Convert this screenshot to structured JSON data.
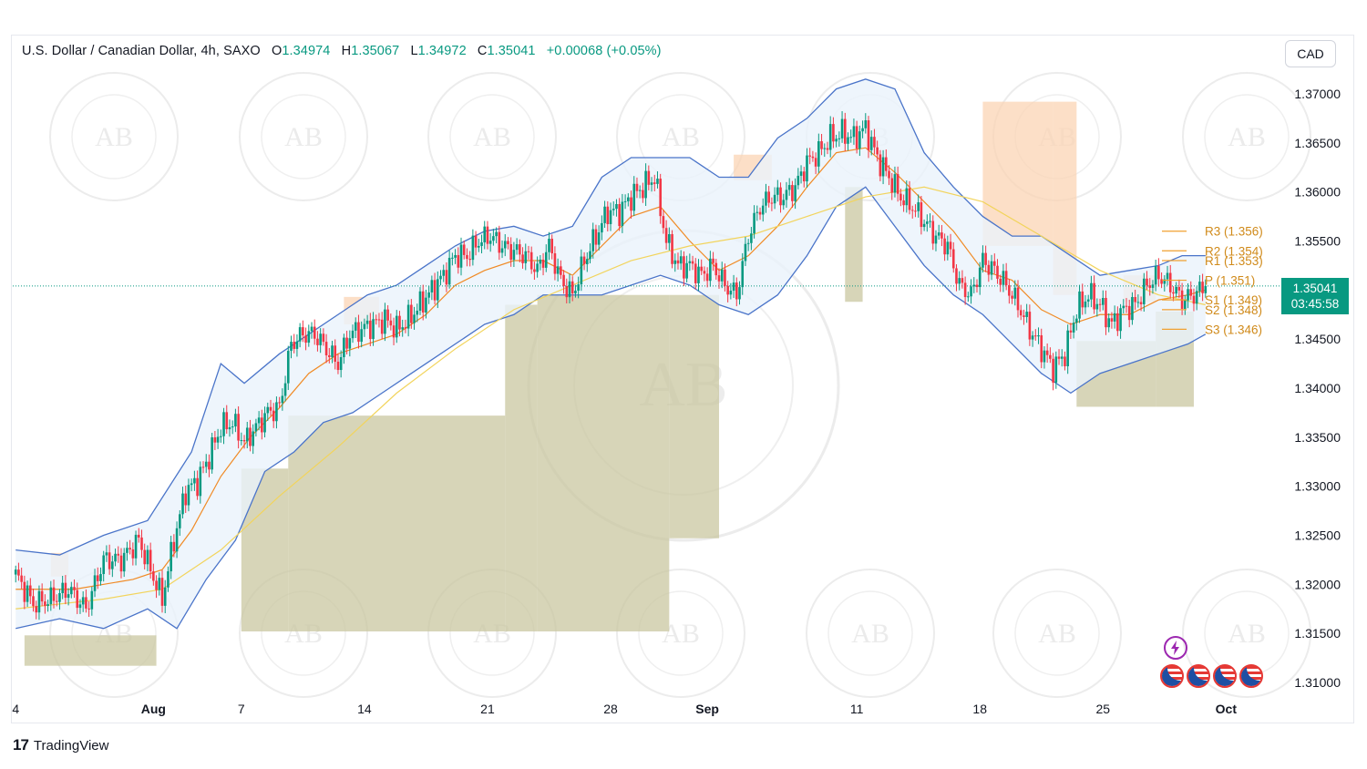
{
  "header": {
    "symbol": "U.S. Dollar / Canadian Dollar, 4h, SAXO",
    "o_label": "O",
    "o_value": "1.34974",
    "h_label": "H",
    "h_value": "1.35067",
    "l_label": "L",
    "l_value": "1.34972",
    "c_label": "C",
    "c_value": "1.35041",
    "change": "+0.00068 (+0.05%)"
  },
  "currency_button": "CAD",
  "price_tag": {
    "price": "1.35041",
    "countdown": "03:45:58"
  },
  "footer": {
    "logo": "17",
    "brand": "TradingView"
  },
  "colors": {
    "up": "#089981",
    "down": "#f23645",
    "band": "#4a74c9",
    "band_fill": "#eaf3fb",
    "ma_orange": "#f08a24",
    "ma_yellow": "#f2d45c",
    "zone_green": "#c9c7a0",
    "zone_orange": "#fbd4b4",
    "pivot": "#f0a030"
  },
  "chart_data": {
    "type": "candlestick",
    "title": "U.S. Dollar / Canadian Dollar, 4h, SAXO",
    "ylim": [
      1.3085,
      1.3725
    ],
    "y_ticks": [
      "1.37000",
      "1.36500",
      "1.36000",
      "1.35500",
      "1.35000",
      "1.34500",
      "1.34000",
      "1.33500",
      "1.33000",
      "1.32500",
      "1.32000",
      "1.31500",
      "1.31000"
    ],
    "y_tick_values": [
      1.37,
      1.365,
      1.36,
      1.355,
      1.35,
      1.345,
      1.34,
      1.335,
      1.33,
      1.325,
      1.32,
      1.315,
      1.31
    ],
    "x_ticks": [
      {
        "label": "4",
        "bold": false,
        "t": 0
      },
      {
        "label": "Aug",
        "bold": true,
        "t": 47
      },
      {
        "label": "7",
        "bold": false,
        "t": 77
      },
      {
        "label": "14",
        "bold": false,
        "t": 119
      },
      {
        "label": "21",
        "bold": false,
        "t": 161
      },
      {
        "label": "28",
        "bold": false,
        "t": 203
      },
      {
        "label": "Sep",
        "bold": true,
        "t": 236
      },
      {
        "label": "11",
        "bold": false,
        "t": 287
      },
      {
        "label": "18",
        "bold": false,
        "t": 329
      },
      {
        "label": "25",
        "bold": false,
        "t": 371
      },
      {
        "label": "Oct",
        "bold": true,
        "t": 413
      }
    ],
    "x_range": [
      -1,
      430
    ],
    "close_anchors": [
      [
        0,
        1.321
      ],
      [
        6,
        1.318
      ],
      [
        12,
        1.3185
      ],
      [
        18,
        1.3195
      ],
      [
        24,
        1.3175
      ],
      [
        30,
        1.3225
      ],
      [
        36,
        1.3225
      ],
      [
        42,
        1.3245
      ],
      [
        46,
        1.3215
      ],
      [
        50,
        1.3185
      ],
      [
        54,
        1.3245
      ],
      [
        58,
        1.3295
      ],
      [
        62,
        1.3305
      ],
      [
        66,
        1.333
      ],
      [
        70,
        1.336
      ],
      [
        74,
        1.3365
      ],
      [
        78,
        1.3345
      ],
      [
        82,
        1.336
      ],
      [
        86,
        1.3375
      ],
      [
        90,
        1.338
      ],
      [
        94,
        1.3445
      ],
      [
        98,
        1.3455
      ],
      [
        102,
        1.3455
      ],
      [
        106,
        1.344
      ],
      [
        110,
        1.3425
      ],
      [
        114,
        1.3455
      ],
      [
        118,
        1.346
      ],
      [
        122,
        1.3465
      ],
      [
        126,
        1.347
      ],
      [
        130,
        1.346
      ],
      [
        134,
        1.347
      ],
      [
        138,
        1.3485
      ],
      [
        142,
        1.35
      ],
      [
        146,
        1.3515
      ],
      [
        150,
        1.3535
      ],
      [
        154,
        1.3535
      ],
      [
        158,
        1.355
      ],
      [
        162,
        1.3555
      ],
      [
        166,
        1.3545
      ],
      [
        170,
        1.354
      ],
      [
        174,
        1.3535
      ],
      [
        178,
        1.352
      ],
      [
        182,
        1.3545
      ],
      [
        186,
        1.351
      ],
      [
        190,
        1.3495
      ],
      [
        194,
        1.353
      ],
      [
        198,
        1.3555
      ],
      [
        202,
        1.358
      ],
      [
        206,
        1.358
      ],
      [
        210,
        1.3595
      ],
      [
        214,
        1.3605
      ],
      [
        218,
        1.3615
      ],
      [
        222,
        1.355
      ],
      [
        226,
        1.3525
      ],
      [
        230,
        1.3525
      ],
      [
        234,
        1.3515
      ],
      [
        238,
        1.3525
      ],
      [
        242,
        1.3505
      ],
      [
        246,
        1.3495
      ],
      [
        250,
        1.3555
      ],
      [
        254,
        1.3585
      ],
      [
        258,
        1.3595
      ],
      [
        262,
        1.3595
      ],
      [
        266,
        1.3605
      ],
      [
        270,
        1.363
      ],
      [
        274,
        1.364
      ],
      [
        278,
        1.3655
      ],
      [
        282,
        1.366
      ],
      [
        286,
        1.3655
      ],
      [
        290,
        1.3665
      ],
      [
        294,
        1.3635
      ],
      [
        298,
        1.3615
      ],
      [
        302,
        1.3595
      ],
      [
        306,
        1.3585
      ],
      [
        310,
        1.357
      ],
      [
        314,
        1.3555
      ],
      [
        318,
        1.3545
      ],
      [
        322,
        1.3505
      ],
      [
        326,
        1.3495
      ],
      [
        330,
        1.353
      ],
      [
        334,
        1.352
      ],
      [
        338,
        1.3505
      ],
      [
        342,
        1.3485
      ],
      [
        346,
        1.346
      ],
      [
        350,
        1.344
      ],
      [
        354,
        1.342
      ],
      [
        358,
        1.3435
      ],
      [
        362,
        1.348
      ],
      [
        366,
        1.3495
      ],
      [
        370,
        1.3485
      ],
      [
        374,
        1.3465
      ],
      [
        378,
        1.348
      ],
      [
        382,
        1.3485
      ],
      [
        386,
        1.3505
      ],
      [
        390,
        1.3515
      ],
      [
        394,
        1.3505
      ],
      [
        398,
        1.349
      ],
      [
        402,
        1.3495
      ],
      [
        406,
        1.35041
      ]
    ],
    "moving_averages": [
      {
        "name": "",
        "color": "#f08a24",
        "points": [
          [
            0,
            1.3195
          ],
          [
            20,
            1.3195
          ],
          [
            40,
            1.3205
          ],
          [
            50,
            1.3215
          ],
          [
            60,
            1.3255
          ],
          [
            70,
            1.331
          ],
          [
            80,
            1.335
          ],
          [
            90,
            1.338
          ],
          [
            100,
            1.3415
          ],
          [
            110,
            1.3435
          ],
          [
            120,
            1.3445
          ],
          [
            130,
            1.3455
          ],
          [
            140,
            1.3475
          ],
          [
            150,
            1.3505
          ],
          [
            160,
            1.352
          ],
          [
            170,
            1.353
          ],
          [
            180,
            1.353
          ],
          [
            190,
            1.3515
          ],
          [
            200,
            1.3545
          ],
          [
            210,
            1.3575
          ],
          [
            220,
            1.3585
          ],
          [
            230,
            1.355
          ],
          [
            240,
            1.352
          ],
          [
            250,
            1.3535
          ],
          [
            260,
            1.3565
          ],
          [
            270,
            1.3605
          ],
          [
            280,
            1.364
          ],
          [
            290,
            1.3645
          ],
          [
            300,
            1.362
          ],
          [
            310,
            1.359
          ],
          [
            320,
            1.356
          ],
          [
            330,
            1.352
          ],
          [
            340,
            1.351
          ],
          [
            350,
            1.348
          ],
          [
            360,
            1.3465
          ],
          [
            370,
            1.3475
          ],
          [
            380,
            1.3475
          ],
          [
            390,
            1.349
          ],
          [
            400,
            1.3495
          ],
          [
            406,
            1.35
          ]
        ]
      },
      {
        "name": "",
        "color": "#f2d45c",
        "points": [
          [
            0,
            1.3175
          ],
          [
            30,
            1.3185
          ],
          [
            50,
            1.3195
          ],
          [
            70,
            1.3235
          ],
          [
            90,
            1.329
          ],
          [
            110,
            1.334
          ],
          [
            130,
            1.3395
          ],
          [
            150,
            1.344
          ],
          [
            170,
            1.348
          ],
          [
            190,
            1.3505
          ],
          [
            210,
            1.353
          ],
          [
            230,
            1.3545
          ],
          [
            250,
            1.3555
          ],
          [
            270,
            1.3575
          ],
          [
            290,
            1.3595
          ],
          [
            310,
            1.3605
          ],
          [
            330,
            1.359
          ],
          [
            350,
            1.3555
          ],
          [
            370,
            1.352
          ],
          [
            390,
            1.3495
          ],
          [
            406,
            1.3485
          ]
        ]
      }
    ],
    "bollinger_bands": {
      "upper": [
        [
          0,
          1.3235
        ],
        [
          15,
          1.323
        ],
        [
          30,
          1.325
        ],
        [
          45,
          1.3265
        ],
        [
          60,
          1.3335
        ],
        [
          70,
          1.3425
        ],
        [
          78,
          1.3405
        ],
        [
          90,
          1.3435
        ],
        [
          100,
          1.3455
        ],
        [
          110,
          1.3475
        ],
        [
          120,
          1.3495
        ],
        [
          130,
          1.3505
        ],
        [
          140,
          1.3525
        ],
        [
          150,
          1.3545
        ],
        [
          160,
          1.356
        ],
        [
          170,
          1.3565
        ],
        [
          180,
          1.3555
        ],
        [
          190,
          1.3565
        ],
        [
          200,
          1.3615
        ],
        [
          210,
          1.3635
        ],
        [
          220,
          1.3635
        ],
        [
          230,
          1.3635
        ],
        [
          240,
          1.3615
        ],
        [
          250,
          1.3615
        ],
        [
          260,
          1.3655
        ],
        [
          270,
          1.3675
        ],
        [
          280,
          1.3705
        ],
        [
          290,
          1.3715
        ],
        [
          300,
          1.3705
        ],
        [
          310,
          1.364
        ],
        [
          320,
          1.3605
        ],
        [
          330,
          1.3575
        ],
        [
          340,
          1.3555
        ],
        [
          350,
          1.3555
        ],
        [
          360,
          1.3535
        ],
        [
          370,
          1.3515
        ],
        [
          380,
          1.352
        ],
        [
          390,
          1.3525
        ],
        [
          398,
          1.3535
        ],
        [
          406,
          1.3535
        ]
      ],
      "lower": [
        [
          0,
          1.3155
        ],
        [
          15,
          1.3165
        ],
        [
          30,
          1.3155
        ],
        [
          45,
          1.3175
        ],
        [
          55,
          1.3155
        ],
        [
          65,
          1.3205
        ],
        [
          75,
          1.3245
        ],
        [
          85,
          1.3315
        ],
        [
          95,
          1.3335
        ],
        [
          105,
          1.3365
        ],
        [
          115,
          1.3375
        ],
        [
          125,
          1.3395
        ],
        [
          135,
          1.3415
        ],
        [
          145,
          1.3435
        ],
        [
          160,
          1.3465
        ],
        [
          170,
          1.3475
        ],
        [
          180,
          1.3495
        ],
        [
          190,
          1.3495
        ],
        [
          200,
          1.3495
        ],
        [
          210,
          1.3505
        ],
        [
          220,
          1.3515
        ],
        [
          230,
          1.3505
        ],
        [
          240,
          1.3485
        ],
        [
          250,
          1.3475
        ],
        [
          260,
          1.3495
        ],
        [
          270,
          1.3535
        ],
        [
          280,
          1.3585
        ],
        [
          290,
          1.3605
        ],
        [
          300,
          1.3565
        ],
        [
          310,
          1.3525
        ],
        [
          320,
          1.3495
        ],
        [
          330,
          1.3475
        ],
        [
          340,
          1.3445
        ],
        [
          350,
          1.3415
        ],
        [
          360,
          1.3395
        ],
        [
          370,
          1.3415
        ],
        [
          380,
          1.3425
        ],
        [
          390,
          1.3435
        ],
        [
          400,
          1.3445
        ],
        [
          406,
          1.3455
        ]
      ]
    },
    "zones_green": [
      {
        "t0": 3,
        "t1": 48,
        "y0": 1.3117,
        "y1": 1.3148
      },
      {
        "t0": 77,
        "t1": 93,
        "y0": 1.3152,
        "y1": 1.3318
      },
      {
        "t0": 93,
        "t1": 167,
        "y0": 1.3152,
        "y1": 1.3372
      },
      {
        "t0": 167,
        "t1": 178,
        "y0": 1.3152,
        "y1": 1.3485
      },
      {
        "t0": 178,
        "t1": 223,
        "y0": 1.3152,
        "y1": 1.3495
      },
      {
        "t0": 223,
        "t1": 240,
        "y0": 1.3247,
        "y1": 1.3495
      },
      {
        "t0": 283,
        "t1": 289,
        "y0": 1.3488,
        "y1": 1.3605
      },
      {
        "t0": 362,
        "t1": 389,
        "y0": 1.3381,
        "y1": 1.3448
      },
      {
        "t0": 389,
        "t1": 402,
        "y0": 1.3381,
        "y1": 1.3478
      }
    ],
    "zones_orange": [
      {
        "t0": 12,
        "t1": 18,
        "y0": 1.3208,
        "y1": 1.3232
      },
      {
        "t0": 112,
        "t1": 124,
        "y0": 1.3465,
        "y1": 1.3493
      },
      {
        "t0": 245,
        "t1": 258,
        "y0": 1.3612,
        "y1": 1.3638
      },
      {
        "t0": 330,
        "t1": 354,
        "y0": 1.3545,
        "y1": 1.3692
      },
      {
        "t0": 354,
        "t1": 362,
        "y0": 1.3495,
        "y1": 1.3692
      },
      {
        "t0": 378,
        "t1": 389,
        "y0": 1.3488,
        "y1": 1.3515
      }
    ],
    "pivots": [
      {
        "label": "R3 (1.356)",
        "value": 1.356
      },
      {
        "label": "R2 (1.354)",
        "value": 1.354
      },
      {
        "label": "R1 (1.353)",
        "value": 1.353
      },
      {
        "label": "P (1.351)",
        "value": 1.351
      },
      {
        "label": "S1 (1.349)",
        "value": 1.349
      },
      {
        "label": "S2 (1.348)",
        "value": 1.348
      },
      {
        "label": "S3 (1.346)",
        "value": 1.346
      }
    ],
    "last_price": 1.35041
  }
}
